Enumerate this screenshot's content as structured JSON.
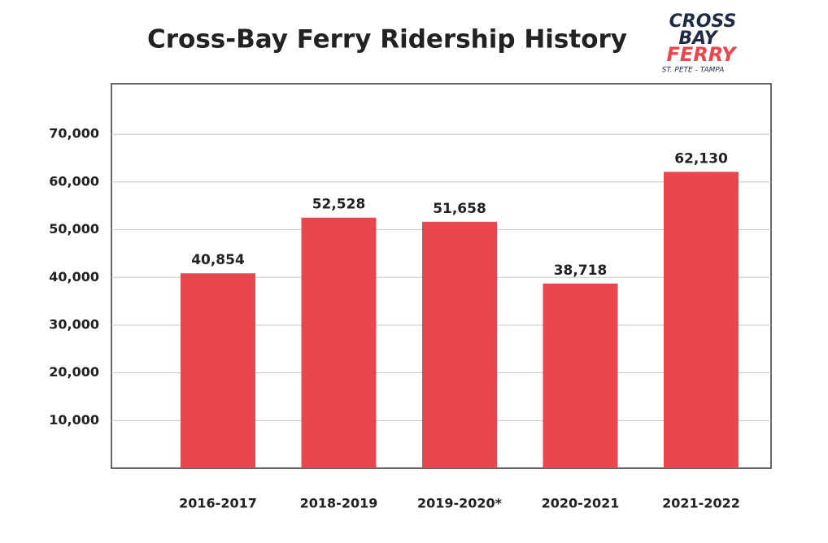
{
  "chart_data": {
    "type": "bar",
    "title": "Cross-Bay Ferry Ridership History",
    "categories": [
      "2016-2017",
      "2018-2019",
      "2019-2020*",
      "2020-2021",
      "2021-2022"
    ],
    "values": [
      40854,
      52528,
      51658,
      38718,
      62130
    ],
    "value_labels": [
      "40,854",
      "52,528",
      "51,658",
      "38,718",
      "62,130"
    ],
    "color": "#e9474d",
    "ylim": [
      0,
      80600
    ],
    "yticks": [
      {
        "value": 10000,
        "label": "10,000"
      },
      {
        "value": 20000,
        "label": "20,000"
      },
      {
        "value": 30000,
        "label": "30,000"
      },
      {
        "value": 40000,
        "label": "40,000"
      },
      {
        "value": 50000,
        "label": "50,000"
      },
      {
        "value": 60000,
        "label": "60,000"
      },
      {
        "value": 70000,
        "label": "70,000"
      }
    ],
    "grid": true
  },
  "logo": {
    "line1": "CROSS",
    "line2": "BAY",
    "line3": "FERRY",
    "tagline": "ST. PETE - TAMPA"
  }
}
